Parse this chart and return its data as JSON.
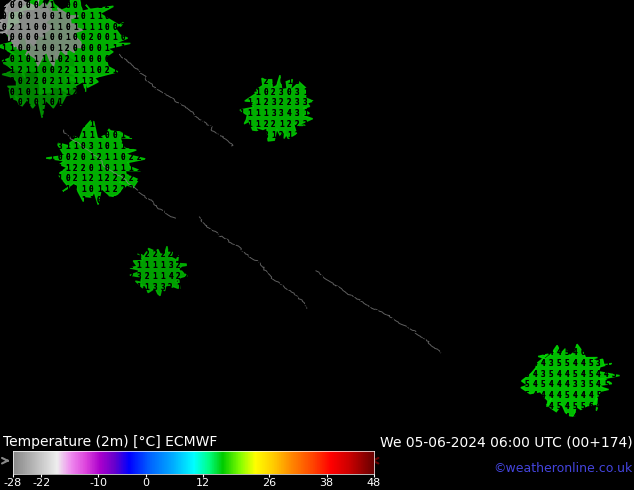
{
  "title_left": "Temperature (2m) [°C] ECMWF",
  "title_right": "We 05-06-2024 06:00 UTC (00+174)",
  "credit": "©weatheronline.co.uk",
  "colorbar_ticks": [
    -28,
    -22,
    -10,
    0,
    12,
    26,
    38,
    48
  ],
  "colorbar_vmin": -28,
  "colorbar_vmax": 48,
  "map_bg_color": "#ffff00",
  "bar_bg_color": "#000000",
  "digit_color": "#000000",
  "credit_color": "#4444dd",
  "figsize": [
    6.34,
    4.9
  ],
  "dpi": 100,
  "rows": 40,
  "cols": 80,
  "digit_fontsize": 5.5,
  "colorbar_colors": [
    [
      0.0,
      "#888888"
    ],
    [
      0.04,
      "#aaaaaa"
    ],
    [
      0.08,
      "#cccccc"
    ],
    [
      0.12,
      "#eeeeee"
    ],
    [
      0.16,
      "#ee88ee"
    ],
    [
      0.2,
      "#dd44dd"
    ],
    [
      0.24,
      "#aa00cc"
    ],
    [
      0.28,
      "#6600cc"
    ],
    [
      0.32,
      "#0000ff"
    ],
    [
      0.38,
      "#0066ff"
    ],
    [
      0.44,
      "#00aaff"
    ],
    [
      0.5,
      "#00ffff"
    ],
    [
      0.54,
      "#00ff88"
    ],
    [
      0.58,
      "#00cc00"
    ],
    [
      0.63,
      "#88ff00"
    ],
    [
      0.67,
      "#ffff00"
    ],
    [
      0.72,
      "#ffcc00"
    ],
    [
      0.77,
      "#ff8800"
    ],
    [
      0.83,
      "#ff4400"
    ],
    [
      0.88,
      "#ff0000"
    ],
    [
      0.93,
      "#cc0000"
    ],
    [
      1.0,
      "#660000"
    ]
  ],
  "green_blob_color": "#00ff00",
  "gray_region_color": "#888888",
  "contour_line_color": "#888888"
}
